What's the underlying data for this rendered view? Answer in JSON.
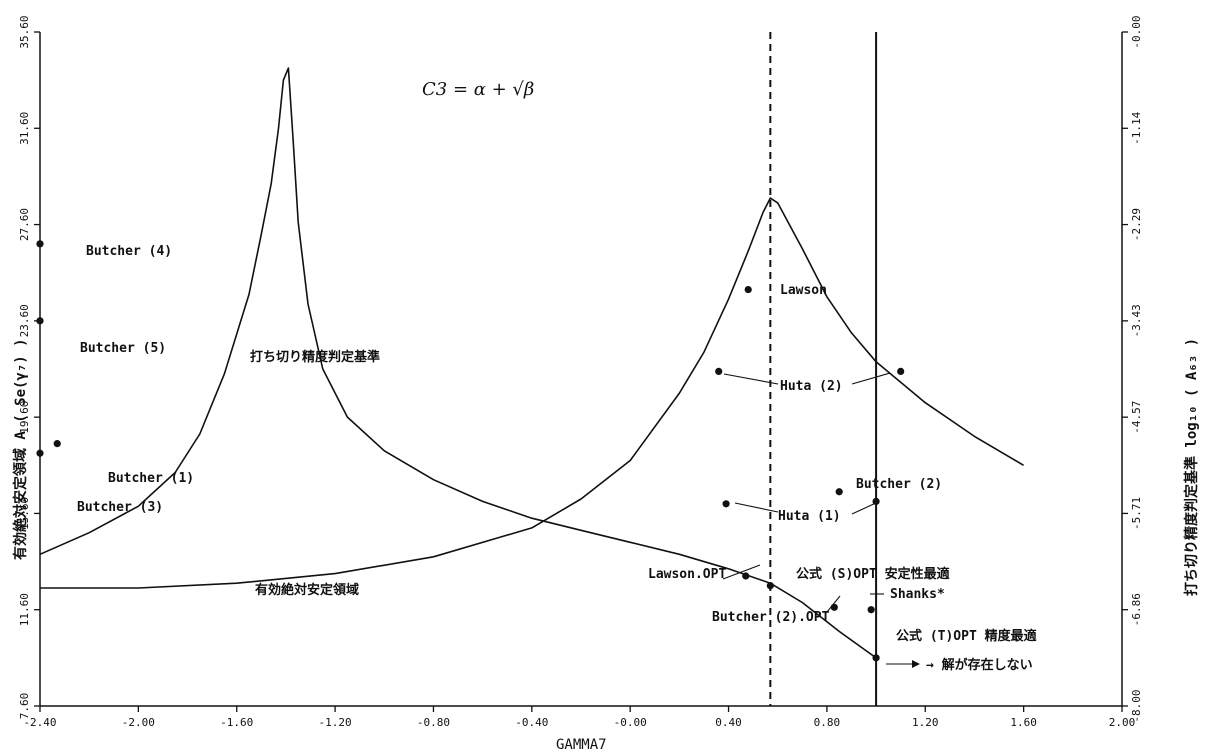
{
  "chart_data": {
    "type": "line",
    "title": "",
    "formula": "C3 = α + √β",
    "xlabel": "GAMMA7",
    "ylabel_left": "有効絶対安定領域 A ( Se(γ₇) )",
    "ylabel_right": "打ち切り精度判定基準 log₁₀ ( A₆₃ )",
    "xlim": [
      -2.4,
      2.0
    ],
    "ylim_left": [
      7.6,
      35.6
    ],
    "ylim_right": [
      -8.0,
      0.0
    ],
    "x_ticks": [
      "-2.40",
      "-2.00",
      "-1.60",
      "-1.20",
      "-0.80",
      "-0.40",
      "-0.00",
      "0.40",
      "0.80",
      "1.20",
      "1.60",
      "2.00"
    ],
    "y_ticks_left": [
      "7.60",
      "11.60",
      "15.60",
      "19.60",
      "23.60",
      "27.60",
      "31.60",
      "35.60"
    ],
    "y_ticks_right": [
      "-8.00",
      "-6.86",
      "-5.71",
      "-4.57",
      "-3.43",
      "-2.29",
      "-1.14",
      "-0.00"
    ],
    "grid": false,
    "vertical_lines": [
      {
        "x": 0.57,
        "style": "dashed"
      },
      {
        "x": 1.0,
        "style": "solid"
      }
    ],
    "series": [
      {
        "name": "打ち切り精度判定基準",
        "axis": "left",
        "x": [
          -2.4,
          -2.2,
          -2.0,
          -1.85,
          -1.75,
          -1.65,
          -1.55,
          -1.5,
          -1.46,
          -1.43,
          -1.41,
          -1.39,
          -1.37,
          -1.35,
          -1.31,
          -1.25,
          -1.15,
          -1.0,
          -0.8,
          -0.6,
          -0.4,
          -0.2,
          0.0,
          0.2,
          0.4,
          0.57,
          0.7,
          0.85,
          1.0
        ],
        "y": [
          13.9,
          14.8,
          15.9,
          17.3,
          18.9,
          21.4,
          24.7,
          27.2,
          29.3,
          31.6,
          33.6,
          34.1,
          31.0,
          27.7,
          24.3,
          21.6,
          19.6,
          18.2,
          17.0,
          16.1,
          15.4,
          14.9,
          14.4,
          13.9,
          13.3,
          12.7,
          11.9,
          10.7,
          9.6
        ]
      },
      {
        "name": "有効絶対安定領域",
        "axis": "left",
        "x": [
          -2.4,
          -2.0,
          -1.6,
          -1.2,
          -0.8,
          -0.4,
          -0.2,
          0.0,
          0.2,
          0.3,
          0.4,
          0.48,
          0.54,
          0.57,
          0.6,
          0.7,
          0.8,
          0.9,
          1.0,
          1.2,
          1.4,
          1.6
        ],
        "y": [
          12.5,
          12.5,
          12.7,
          13.1,
          13.8,
          15.0,
          16.2,
          17.8,
          20.6,
          22.3,
          24.5,
          26.5,
          28.1,
          28.7,
          28.5,
          26.6,
          24.6,
          23.1,
          21.9,
          20.2,
          18.8,
          17.6
        ]
      }
    ],
    "points": [
      {
        "label": "Butcher (4)",
        "x": -2.4,
        "y": 26.8
      },
      {
        "label": "Butcher (5)",
        "x": -2.4,
        "y": 23.6
      },
      {
        "label": "Butcher (1)",
        "x": -2.33,
        "y": 18.5
      },
      {
        "label": "Butcher (3)",
        "x": -2.4,
        "y": 18.1
      },
      {
        "label": "Lawson",
        "x": 0.48,
        "y": 24.9
      },
      {
        "label": "",
        "x": 0.36,
        "y": 21.5
      },
      {
        "label": "",
        "x": 1.1,
        "y": 21.5
      },
      {
        "label": "",
        "x": 0.39,
        "y": 16.0
      },
      {
        "label": "",
        "x": 1.0,
        "y": 16.1
      },
      {
        "label": "Butcher (2)",
        "x": 0.85,
        "y": 16.5
      },
      {
        "label": "",
        "x": 0.47,
        "y": 13.0
      },
      {
        "label": "",
        "x": 0.57,
        "y": 12.6
      },
      {
        "label": "",
        "x": 0.83,
        "y": 11.7
      },
      {
        "label": "",
        "x": 0.98,
        "y": 11.6
      },
      {
        "label": "",
        "x": 1.0,
        "y": 9.6
      }
    ],
    "annotations": [
      {
        "text": "Butcher (4)"
      },
      {
        "text": "Butcher (5)"
      },
      {
        "text": "Butcher (1)"
      },
      {
        "text": "Butcher (3)"
      },
      {
        "text": "打ち切り精度判定基準"
      },
      {
        "text": "有効絶対安定領域"
      },
      {
        "text": "Lawson"
      },
      {
        "text": "Huta (2)"
      },
      {
        "text": "Huta (1)"
      },
      {
        "text": "Butcher (2)"
      },
      {
        "text": "Lawson.OPT"
      },
      {
        "text": "公式 (S)OPT 安定性最適"
      },
      {
        "text": "Shanks*"
      },
      {
        "text": "Butcher (2).OPT"
      },
      {
        "text": "公式 (T)OPT 精度最適"
      },
      {
        "text": "→ 解が存在しない"
      }
    ]
  },
  "colors": {
    "ink": "#111111",
    "paper": "#ffffff"
  }
}
